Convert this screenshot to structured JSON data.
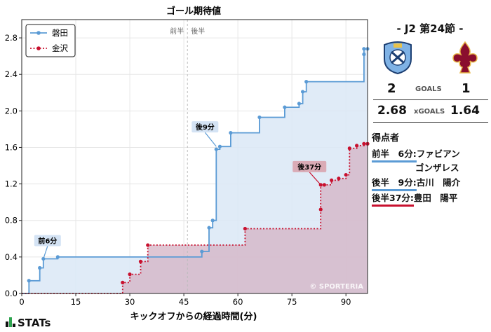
{
  "chart_data": {
    "type": "line",
    "title": "ゴール期待値",
    "xlabel": "キックオフからの経過時間(分)",
    "ylabel": "",
    "xlim": [
      0,
      96
    ],
    "ylim": [
      0,
      3.0
    ],
    "x_ticks": [
      0,
      15,
      30,
      45,
      60,
      75,
      90
    ],
    "y_ticks": [
      0.0,
      0.4,
      0.8,
      1.2,
      1.6,
      2.0,
      2.4,
      2.8
    ],
    "x_tick_labels": [
      "0",
      "15",
      "30",
      "45",
      "60",
      "75",
      "90"
    ],
    "y_tick_labels": [
      "0.0",
      "0.4",
      "0.8",
      "1.2",
      "1.6",
      "2.0",
      "2.4",
      "2.8"
    ],
    "halftime_labels": [
      "前半",
      "後半"
    ],
    "halftime_minute": 46,
    "legend": "top-left",
    "grid": true,
    "watermark": "© SPORTERIA",
    "series": [
      {
        "name": "磐田",
        "color": "#5b9bd5",
        "fill": "#dbe8f6",
        "style": "solid",
        "x": [
          2,
          5,
          6,
          10,
          50,
          52,
          53,
          54,
          55,
          58,
          66,
          73,
          77,
          78,
          79,
          95,
          95,
          96
        ],
        "y": [
          0.14,
          0.28,
          0.38,
          0.4,
          0.46,
          0.72,
          0.8,
          1.58,
          1.61,
          1.76,
          1.93,
          2.04,
          2.08,
          2.21,
          2.32,
          2.62,
          2.68,
          2.68
        ]
      },
      {
        "name": "金沢",
        "color": "#c8102e",
        "fill": "#d4b3c4",
        "style": "dotted",
        "x": [
          28,
          30,
          33,
          35,
          62,
          83,
          83,
          84,
          86,
          88,
          90,
          91,
          93,
          95,
          96
        ],
        "y": [
          0.12,
          0.21,
          0.35,
          0.53,
          0.71,
          0.92,
          1.19,
          1.19,
          1.24,
          1.26,
          1.3,
          1.59,
          1.62,
          1.64,
          1.64
        ]
      }
    ],
    "annotations": [
      {
        "text": "前6分",
        "series": 0,
        "x": 6,
        "y": 0.38,
        "box_color": "#cfe0f3"
      },
      {
        "text": "後9分",
        "series": 0,
        "x": 54,
        "y": 1.61,
        "box_color": "#cfe0f3"
      },
      {
        "text": "後37分",
        "series": 1,
        "x": 83,
        "y": 1.19,
        "box_color": "#d9a4ae"
      }
    ]
  },
  "match": {
    "title": "- J2 第24節 -",
    "home_crest_icon": "jubilo-iwata-crest-icon",
    "away_crest_icon": "zweigen-kanazawa-crest-icon",
    "home_goals": "2",
    "away_goals": "1",
    "goals_label": "GOALS",
    "home_xg": "2.68",
    "away_xg": "1.64",
    "xg_label": "xGOALS"
  },
  "scorers": {
    "title": "得点者",
    "list": [
      {
        "time": "前半　6分:",
        "name": "ファビアン",
        "name_cont": "ゴンザレス",
        "team": "home"
      },
      {
        "time": "後半　9分:",
        "name": "古川　陽介",
        "team": "home"
      },
      {
        "time": "後半37分:",
        "name": "豊田　陽平",
        "team": "away"
      }
    ]
  },
  "brand": {
    "logo_text": "STATs"
  }
}
